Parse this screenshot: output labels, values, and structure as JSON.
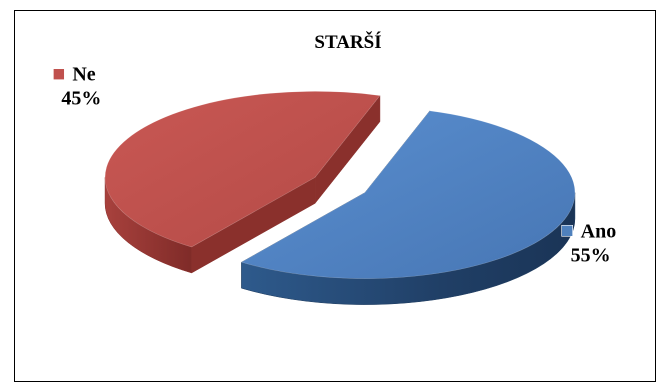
{
  "chart_data": {
    "type": "pie",
    "title": "STARŠÍ",
    "three_d": true,
    "exploded": true,
    "labels_position": "outside, with legend key",
    "slices": [
      {
        "name": "Ano",
        "value": 55,
        "label": "55%",
        "color": "#4f81bd"
      },
      {
        "name": "Ne",
        "value": 45,
        "label": "45%",
        "color": "#c0504d"
      }
    ]
  }
}
